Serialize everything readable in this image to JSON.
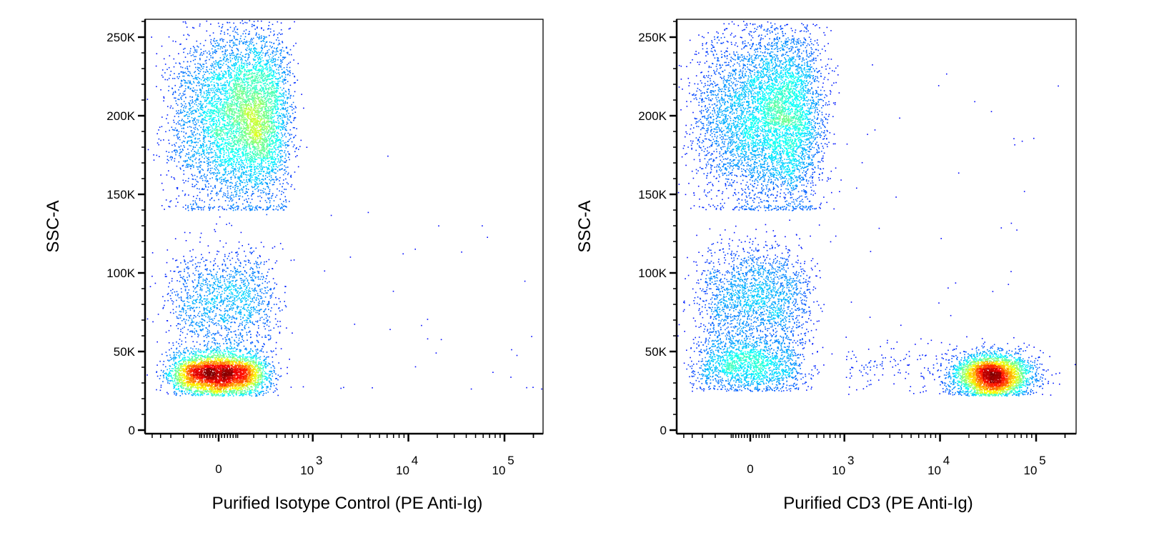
{
  "chart_data": [
    {
      "type": "scatter",
      "subtype": "flow-cytometry pseudocolor dot plot",
      "xlabel": "Purified Isotype Control (PE Anti-Ig)",
      "ylabel": "SSC-A",
      "x_scale": "biexponential",
      "xlim": [
        -600,
        250000
      ],
      "ylim": [
        -2000,
        261000
      ],
      "x_ticks": [
        {
          "value": 0,
          "label": "0"
        },
        {
          "value": 1000,
          "base": "10",
          "exp": "3"
        },
        {
          "value": 10000,
          "base": "10",
          "exp": "4"
        },
        {
          "value": 100000,
          "base": "10",
          "exp": "5"
        }
      ],
      "y_ticks": [
        {
          "value": 0,
          "label": "0"
        },
        {
          "value": 50000,
          "label": "50K"
        },
        {
          "value": 100000,
          "label": "100K"
        },
        {
          "value": 150000,
          "label": "150K"
        },
        {
          "value": 200000,
          "label": "200K"
        },
        {
          "value": 250000,
          "label": "250K"
        }
      ],
      "colormap": "density (blue-green-yellow-red)",
      "populations": [
        {
          "x_mean": 130,
          "x_sd": 160,
          "y_mean": 200000,
          "y_sd": 28000,
          "y_min": 140000,
          "count": 6000
        },
        {
          "x_mean": 0,
          "x_sd": 120,
          "y_mean": 36000,
          "y_sd": 7000,
          "y_min": 22000,
          "count": 4200
        },
        {
          "x_mean": 40,
          "x_sd": 140,
          "y_mean": 82000,
          "y_sd": 16000,
          "y_min": 50000,
          "count": 1500
        },
        {
          "x_log_min": 2.5,
          "x_log_max": 5.4,
          "y_mean": 80000,
          "y_sd": 60000,
          "y_min": 25000,
          "count": 40
        }
      ]
    },
    {
      "type": "scatter",
      "subtype": "flow-cytometry pseudocolor dot plot",
      "xlabel": "Purified CD3 (PE Anti-Ig)",
      "ylabel": "SSC-A",
      "x_scale": "biexponential",
      "xlim": [
        -600,
        250000
      ],
      "ylim": [
        -2000,
        261000
      ],
      "x_ticks": [
        {
          "value": 0,
          "label": "0"
        },
        {
          "value": 1000,
          "base": "10",
          "exp": "3"
        },
        {
          "value": 10000,
          "base": "10",
          "exp": "4"
        },
        {
          "value": 100000,
          "base": "10",
          "exp": "5"
        }
      ],
      "y_ticks": [
        {
          "value": 0,
          "label": "0"
        },
        {
          "value": 50000,
          "label": "50K"
        },
        {
          "value": 100000,
          "label": "100K"
        },
        {
          "value": 150000,
          "label": "150K"
        },
        {
          "value": 200000,
          "label": "200K"
        },
        {
          "value": 250000,
          "label": "250K"
        }
      ],
      "colormap": "density (blue-green-yellow-red)",
      "populations": [
        {
          "x_mean": 110,
          "x_sd": 170,
          "y_mean": 200000,
          "y_sd": 28000,
          "y_min": 140000,
          "count": 6000
        },
        {
          "x_mean": 0,
          "x_sd": 140,
          "y_mean": 42000,
          "y_sd": 9000,
          "y_min": 25000,
          "count": 1800
        },
        {
          "x_mean": 30,
          "x_sd": 150,
          "y_mean": 85000,
          "y_sd": 16000,
          "y_min": 55000,
          "count": 2000
        },
        {
          "x_log_mean": 4.55,
          "x_log_sd": 0.2,
          "y_mean": 35000,
          "y_sd": 7000,
          "y_min": 22000,
          "count": 3600
        },
        {
          "x_log_min": 3.0,
          "x_log_max": 4.3,
          "y_mean": 40000,
          "y_sd": 8000,
          "y_min": 22000,
          "count": 160
        },
        {
          "x_log_min": 2.5,
          "x_log_max": 5.3,
          "y_mean": 120000,
          "y_sd": 70000,
          "y_min": 25000,
          "count": 50
        }
      ]
    }
  ]
}
